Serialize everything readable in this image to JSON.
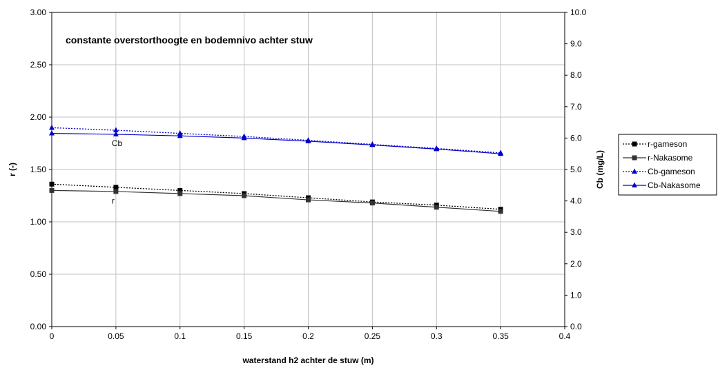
{
  "chart_data": {
    "type": "line",
    "title": "constante overstorthoogte en bodemnivo achter stuw",
    "xlabel": "waterstand h2 achter de stuw (m)",
    "ylabel": "r (-)",
    "y2label": "Cb (mg/L)",
    "xlim": [
      0,
      0.4
    ],
    "ylim": [
      0,
      3.0
    ],
    "y2lim": [
      0,
      10.0
    ],
    "x_ticks": [
      "0",
      "0.05",
      "0.1",
      "0.15",
      "0.2",
      "0.25",
      "0.3",
      "0.35",
      "0.4"
    ],
    "y_ticks": [
      "0.00",
      "0.50",
      "1.00",
      "1.50",
      "2.00",
      "2.50",
      "3.00"
    ],
    "y2_ticks": [
      "0.0",
      "1.0",
      "2.0",
      "3.0",
      "4.0",
      "5.0",
      "6.0",
      "7.0",
      "8.0",
      "9.0",
      "10.0"
    ],
    "grid": true,
    "legend_position": "right",
    "x": [
      0,
      0.05,
      0.1,
      0.15,
      0.2,
      0.25,
      0.3,
      0.35
    ],
    "series": [
      {
        "name": "r-gameson",
        "axis": "left",
        "style": "dotted",
        "marker": "square",
        "color": "#000000",
        "values": [
          1.36,
          1.33,
          1.3,
          1.27,
          1.23,
          1.19,
          1.16,
          1.12
        ]
      },
      {
        "name": "r-Nakasome",
        "axis": "left",
        "style": "solid",
        "marker": "square",
        "color": "#333333",
        "values": [
          1.3,
          1.29,
          1.27,
          1.25,
          1.21,
          1.18,
          1.14,
          1.1
        ]
      },
      {
        "name": "Cb-gameson",
        "axis": "right",
        "style": "dotted",
        "marker": "triangle",
        "color": "#0000CC",
        "values": [
          6.33,
          6.25,
          6.15,
          6.05,
          5.93,
          5.8,
          5.67,
          5.53
        ]
      },
      {
        "name": "Cb-Nakasome",
        "axis": "right",
        "style": "solid",
        "marker": "triangle",
        "color": "#0000CC",
        "values": [
          6.15,
          6.12,
          6.07,
          6.0,
          5.9,
          5.78,
          5.65,
          5.5
        ]
      }
    ],
    "annotations": [
      {
        "text": "Cb",
        "x": 0.05,
        "y": 1.75
      },
      {
        "text": "r",
        "x": 0.05,
        "y": 1.2
      }
    ]
  }
}
